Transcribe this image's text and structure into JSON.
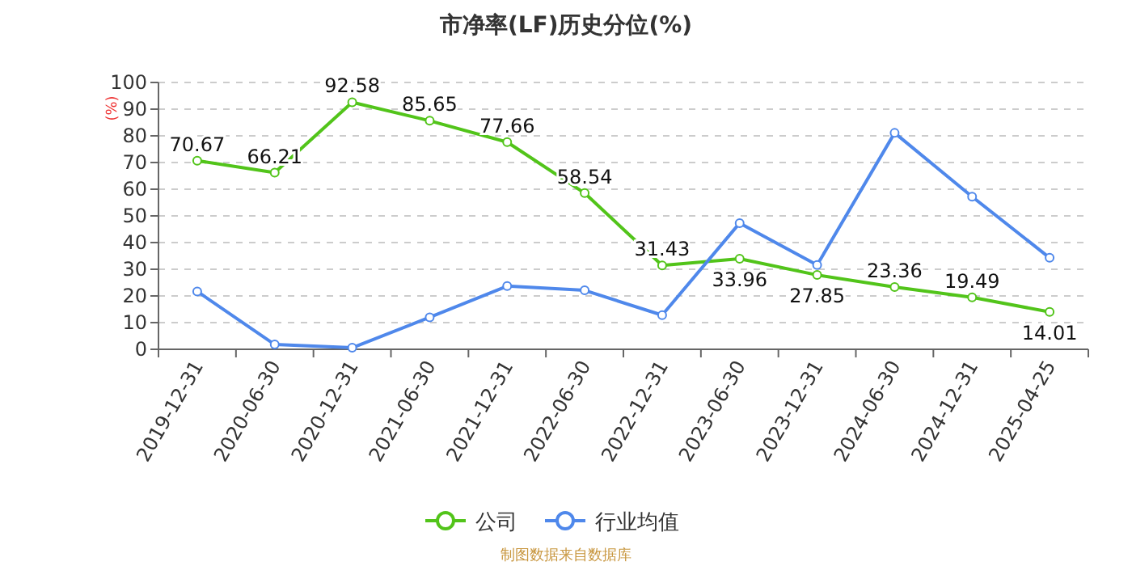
{
  "chart_data": {
    "type": "line",
    "title": "市净率(LF)历史分位(%)",
    "ylabel": "(%)",
    "categories": [
      "2019-12-31",
      "2020-06-30",
      "2020-12-31",
      "2021-06-30",
      "2021-12-31",
      "2022-06-30",
      "2022-12-31",
      "2023-06-30",
      "2023-12-31",
      "2024-06-30",
      "2024-12-31",
      "2025-04-25"
    ],
    "series": [
      {
        "name": "公司",
        "color": "#52c41a",
        "values": [
          70.67,
          66.21,
          92.58,
          85.65,
          77.66,
          58.54,
          31.43,
          33.96,
          27.85,
          23.36,
          19.49,
          14.01
        ],
        "value_labels": [
          "70.67",
          "66.21",
          "92.58",
          "85.65",
          "77.66",
          "58.54",
          "31.43",
          "33.96",
          "27.85",
          "23.36",
          "19.49",
          "14.01"
        ]
      },
      {
        "name": "行业均值",
        "color": "#4f88eb",
        "values": [
          21.7,
          1.8,
          0.6,
          12,
          23.7,
          22.1,
          12.8,
          47.3,
          31.6,
          81.1,
          57.2,
          34.3
        ]
      }
    ],
    "ylim": [
      0,
      100
    ],
    "yticks": [
      0,
      10,
      20,
      30,
      40,
      50,
      60,
      70,
      80,
      90,
      100
    ],
    "grid": "y",
    "legend": "bottom",
    "marker": "circle",
    "line_style": "solid",
    "annotations": [
      "制图数据来自数据库"
    ]
  }
}
